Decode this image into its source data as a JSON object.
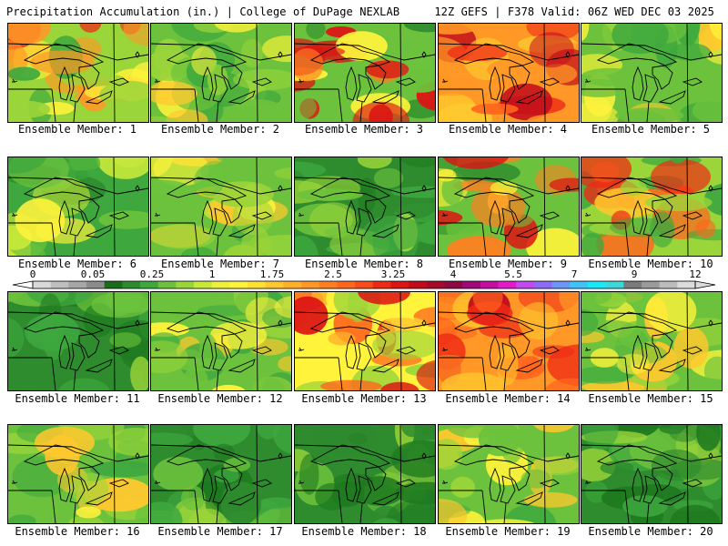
{
  "header": {
    "left_title": "Precipitation Accumulation (in.) | College of DuPage NEXLAB",
    "right_title": "12Z GEFS | F378 Valid: 06Z WED DEC 03 2025"
  },
  "members": [
    {
      "label": "Ensemble Member: 1",
      "tone": "wet-southwest"
    },
    {
      "label": "Ensemble Member: 2",
      "tone": "moderate"
    },
    {
      "label": "Ensemble Member: 3",
      "tone": "wet-south"
    },
    {
      "label": "Ensemble Member: 4",
      "tone": "very-wet"
    },
    {
      "label": "Ensemble Member: 5",
      "tone": "moderate"
    },
    {
      "label": "Ensemble Member: 6",
      "tone": "dry-west"
    },
    {
      "label": "Ensemble Member: 7",
      "tone": "moderate"
    },
    {
      "label": "Ensemble Member: 8",
      "tone": "dry"
    },
    {
      "label": "Ensemble Member: 9",
      "tone": "wet-south"
    },
    {
      "label": "Ensemble Member: 10",
      "tone": "wet-north"
    },
    {
      "label": "Ensemble Member: 11",
      "tone": "dry"
    },
    {
      "label": "Ensemble Member: 12",
      "tone": "moderate"
    },
    {
      "label": "Ensemble Member: 13",
      "tone": "wet"
    },
    {
      "label": "Ensemble Member: 14",
      "tone": "very-wet"
    },
    {
      "label": "Ensemble Member: 15",
      "tone": "moderate"
    },
    {
      "label": "Ensemble Member: 16",
      "tone": "moderate"
    },
    {
      "label": "Ensemble Member: 17",
      "tone": "dry"
    },
    {
      "label": "Ensemble Member: 18",
      "tone": "dry"
    },
    {
      "label": "Ensemble Member: 19",
      "tone": "moderate"
    },
    {
      "label": "Ensemble Member: 20",
      "tone": "dry"
    }
  ],
  "color_scale": {
    "tick_labels": [
      "0",
      "0.05",
      "0.25",
      "1",
      "1.75",
      "2.5",
      "3.25",
      "4",
      "5.5",
      "7",
      "9",
      "12"
    ],
    "colors": [
      "#d9d9d9",
      "#bfbfbf",
      "#a6a6a6",
      "#8c8c8c",
      "#1a6b1a",
      "#2e8b2e",
      "#3ea83e",
      "#6cc23c",
      "#9ad53a",
      "#c8e83a",
      "#f0f03c",
      "#fff33b",
      "#ffe033",
      "#ffc82e",
      "#ffb02a",
      "#ff9826",
      "#ff7f22",
      "#ff661e",
      "#f84c1a",
      "#ee2a16",
      "#dd1414",
      "#c20c1c",
      "#a50a2a",
      "#8c0a44",
      "#a00a78",
      "#c40ea2",
      "#e21ac8",
      "#c24aee",
      "#8c6cf6",
      "#6c96f8",
      "#40c4f8",
      "#1ae8f8",
      "#3cd8d8",
      "#7a7a7a",
      "#9a9a9a",
      "#bcbcbc",
      "#dcdcdc"
    ]
  }
}
